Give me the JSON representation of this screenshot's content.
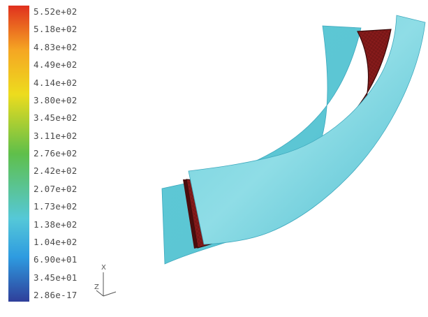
{
  "view": {
    "colorbar": {
      "labels": [
        "5.52e+02",
        "5.18e+02",
        "4.83e+02",
        "4.49e+02",
        "4.14e+02",
        "3.80e+02",
        "3.45e+02",
        "3.11e+02",
        "2.76e+02",
        "2.42e+02",
        "2.07e+02",
        "1.73e+02",
        "1.38e+02",
        "1.04e+02",
        "6.90e+01",
        "3.45e+01",
        "2.86e-17"
      ],
      "colors": {
        "max": "#e0301e",
        "high": "#f5a623",
        "mid_high": "#eddc1e",
        "mid": "#5fbf4a",
        "mid_low": "#55c8d8",
        "low": "#2e9be0",
        "min": "#2f3f9a"
      }
    },
    "triad": {
      "axis_x": "X",
      "axis_z": "Z"
    },
    "model": {
      "blade_color": "#5ec9d6",
      "blade_shade": "#48b8cc",
      "blade_highlight": "#8fdde6",
      "core_color": "#8b1a1a",
      "core_dark": "#4a0d0d"
    }
  }
}
